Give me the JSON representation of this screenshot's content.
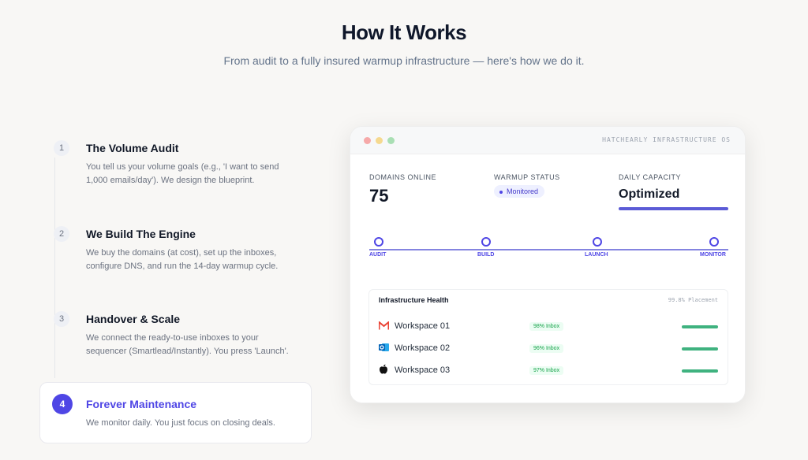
{
  "header": {
    "title": "How It Works",
    "subtitle": "From audit to a fully insured warmup infrastructure — here's how we do it."
  },
  "steps": [
    {
      "number": 1,
      "title": "The Volume Audit",
      "text": "You tell us your volume goals (e.g., 'I want to send 1,000 emails/day'). We design the blueprint."
    },
    {
      "number": 2,
      "title": "We Build The Engine",
      "text": "We buy the domains (at cost), set up the inboxes, configure DNS, and run the 14-day warmup cycle."
    },
    {
      "number": 3,
      "title": "Handover & Scale",
      "text": "We connect the ready-to-use inboxes to your sequencer (Smartlead/Instantly). You press 'Launch'."
    },
    {
      "number": 4,
      "title": "Forever Maintenance",
      "text": "We monitor daily. You just focus on closing deals."
    }
  ],
  "dashboard": {
    "window_title": "HATCHEARLY INFRASTRUCTURE OS",
    "stats": [
      {
        "label": "DOMAINS ONLINE",
        "value": 75
      },
      {
        "label": "WARMUP STATUS",
        "value": "Monitored"
      },
      {
        "label": "DAILY CAPACITY",
        "value": "Optimized"
      }
    ],
    "timeline": [
      "AUDIT",
      "BUILD",
      "LAUNCH",
      "MONITOR"
    ],
    "health": {
      "title": "Infrastructure Health",
      "placement": "99.8% Placement",
      "rows": [
        {
          "name": "Workspace 01",
          "status": "98% Inbox"
        },
        {
          "name": "Workspace 02",
          "status": "96% Inbox"
        },
        {
          "name": "Workspace 03",
          "status": "97% Inbox"
        }
      ]
    }
  }
}
